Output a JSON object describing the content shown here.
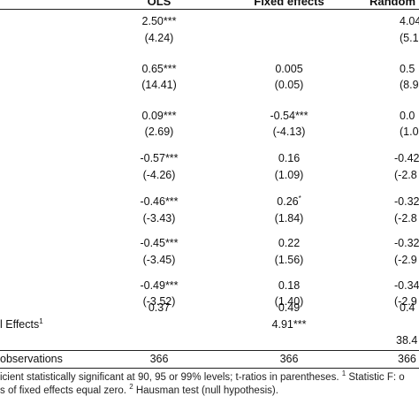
{
  "header": {
    "ols": "OLS",
    "fe": "Fixed effects",
    "re": "Random"
  },
  "rows": [
    {
      "label": "",
      "ols": "2.50***",
      "fe": "",
      "re": "4.04"
    },
    {
      "label": "",
      "ols": "(4.24)",
      "fe": "",
      "re": "(5.1"
    },
    {
      "label": "",
      "ols": "0.65***",
      "fe": "0.005",
      "re": "0.5"
    },
    {
      "label": "",
      "ols": "(14.41)",
      "fe": "(0.05)",
      "re": "(8.9"
    },
    {
      "label": "",
      "ols": "0.09***",
      "fe": "-0.54***",
      "re": "0.0"
    },
    {
      "label": "",
      "ols": "(2.69)",
      "fe": "(-4.13)",
      "re": "(1.0"
    },
    {
      "label": "",
      "ols": "-0.57***",
      "fe": "0.16",
      "re": "-0.42"
    },
    {
      "label": "",
      "ols": "(-4.26)",
      "fe": "(1.09)",
      "re": "(-2.8"
    },
    {
      "label": "",
      "ols": "-0.46***",
      "fe": "0.26*",
      "re": "-0.32"
    },
    {
      "label": "",
      "ols": "(-3.43)",
      "fe": "(1.84)",
      "re": "(-2.8"
    },
    {
      "label": "",
      "ols": "-0.45***",
      "fe": "0.22",
      "re": "-0.32"
    },
    {
      "label": "",
      "ols": "(-3.45)",
      "fe": "(1.56)",
      "re": "(-2.9"
    },
    {
      "label": "",
      "ols": "-0.49***",
      "fe": "0.18",
      "re": "-0.34"
    },
    {
      "label": "",
      "ols": "(-3.52)",
      "fe": "(1.40)",
      "re": "(-2.9"
    },
    {
      "label": "",
      "ols": "0.37",
      "fe": "0.49",
      "re": "0.4"
    }
  ],
  "fixed_effects_row": {
    "label": "l Effects",
    "label_sup": "1",
    "fe": "4.91***"
  },
  "hausman_row": {
    "re": "38.4"
  },
  "obs_row": {
    "label": "observations",
    "ols": "366",
    "fe": "366",
    "re": "366"
  },
  "footnotes": {
    "line1_a": "icient statistically significant at 90, 95 or 99% levels; t-ratios in parentheses. ",
    "line1_sup": "1",
    "line1_b": " Statistic F: o",
    "line2_a": "s of fixed effects equal zero. ",
    "line2_sup": "2",
    "line2_b": " Hausman test (null hypothesis)."
  }
}
